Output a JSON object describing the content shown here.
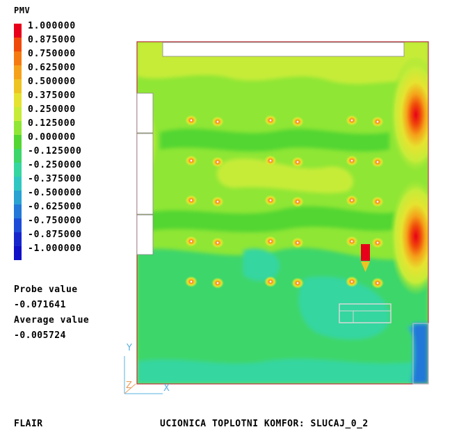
{
  "legend": {
    "title": "PMV",
    "labels": [
      "1.000000",
      "0.875000",
      "0.750000",
      "0.625000",
      "0.500000",
      "0.375000",
      "0.250000",
      "0.125000",
      "0.000000",
      "-0.125000",
      "-0.250000",
      "-0.375000",
      "-0.500000",
      "-0.625000",
      "-0.750000",
      "-0.875000",
      "-1.000000"
    ],
    "colors": [
      "#e8001a",
      "#f04a0a",
      "#f57a10",
      "#f5a21a",
      "#eec423",
      "#e6e330",
      "#c6ec38",
      "#8fe635",
      "#52d632",
      "#3cd66a",
      "#36d6a0",
      "#30c7c2",
      "#2aa2d2",
      "#2478d8",
      "#1d4cd8",
      "#1726cc",
      "#1010c8"
    ]
  },
  "probe": {
    "label": "Probe value",
    "value": "-0.071641"
  },
  "average": {
    "label": "Average value",
    "value": "-0.005724"
  },
  "footer": {
    "left": "FLAIR",
    "right": "UCIONICA TOPLOTNI KOMFOR: SLUCAJ_0_2"
  },
  "axes": {
    "x": "X",
    "y": "Y",
    "z": "Z"
  },
  "chart_data": {
    "type": "heatmap",
    "title": "PMV",
    "value_range": [
      -1.0,
      1.0
    ],
    "hotspots": [
      {
        "side": "right",
        "zone": "upper",
        "peak_value": 0.75
      },
      {
        "side": "right",
        "zone": "middle",
        "peak_value": 0.75
      }
    ],
    "cold_zones": [
      {
        "location": "bottom-right corner",
        "value": -0.625
      },
      {
        "location": "lower-middle floor",
        "value": -0.25
      }
    ],
    "occupant_grid": {
      "rows": 5,
      "columns": 6,
      "peak_value": 0.75
    },
    "probe_value": -0.071641,
    "average_value": -0.005724
  }
}
